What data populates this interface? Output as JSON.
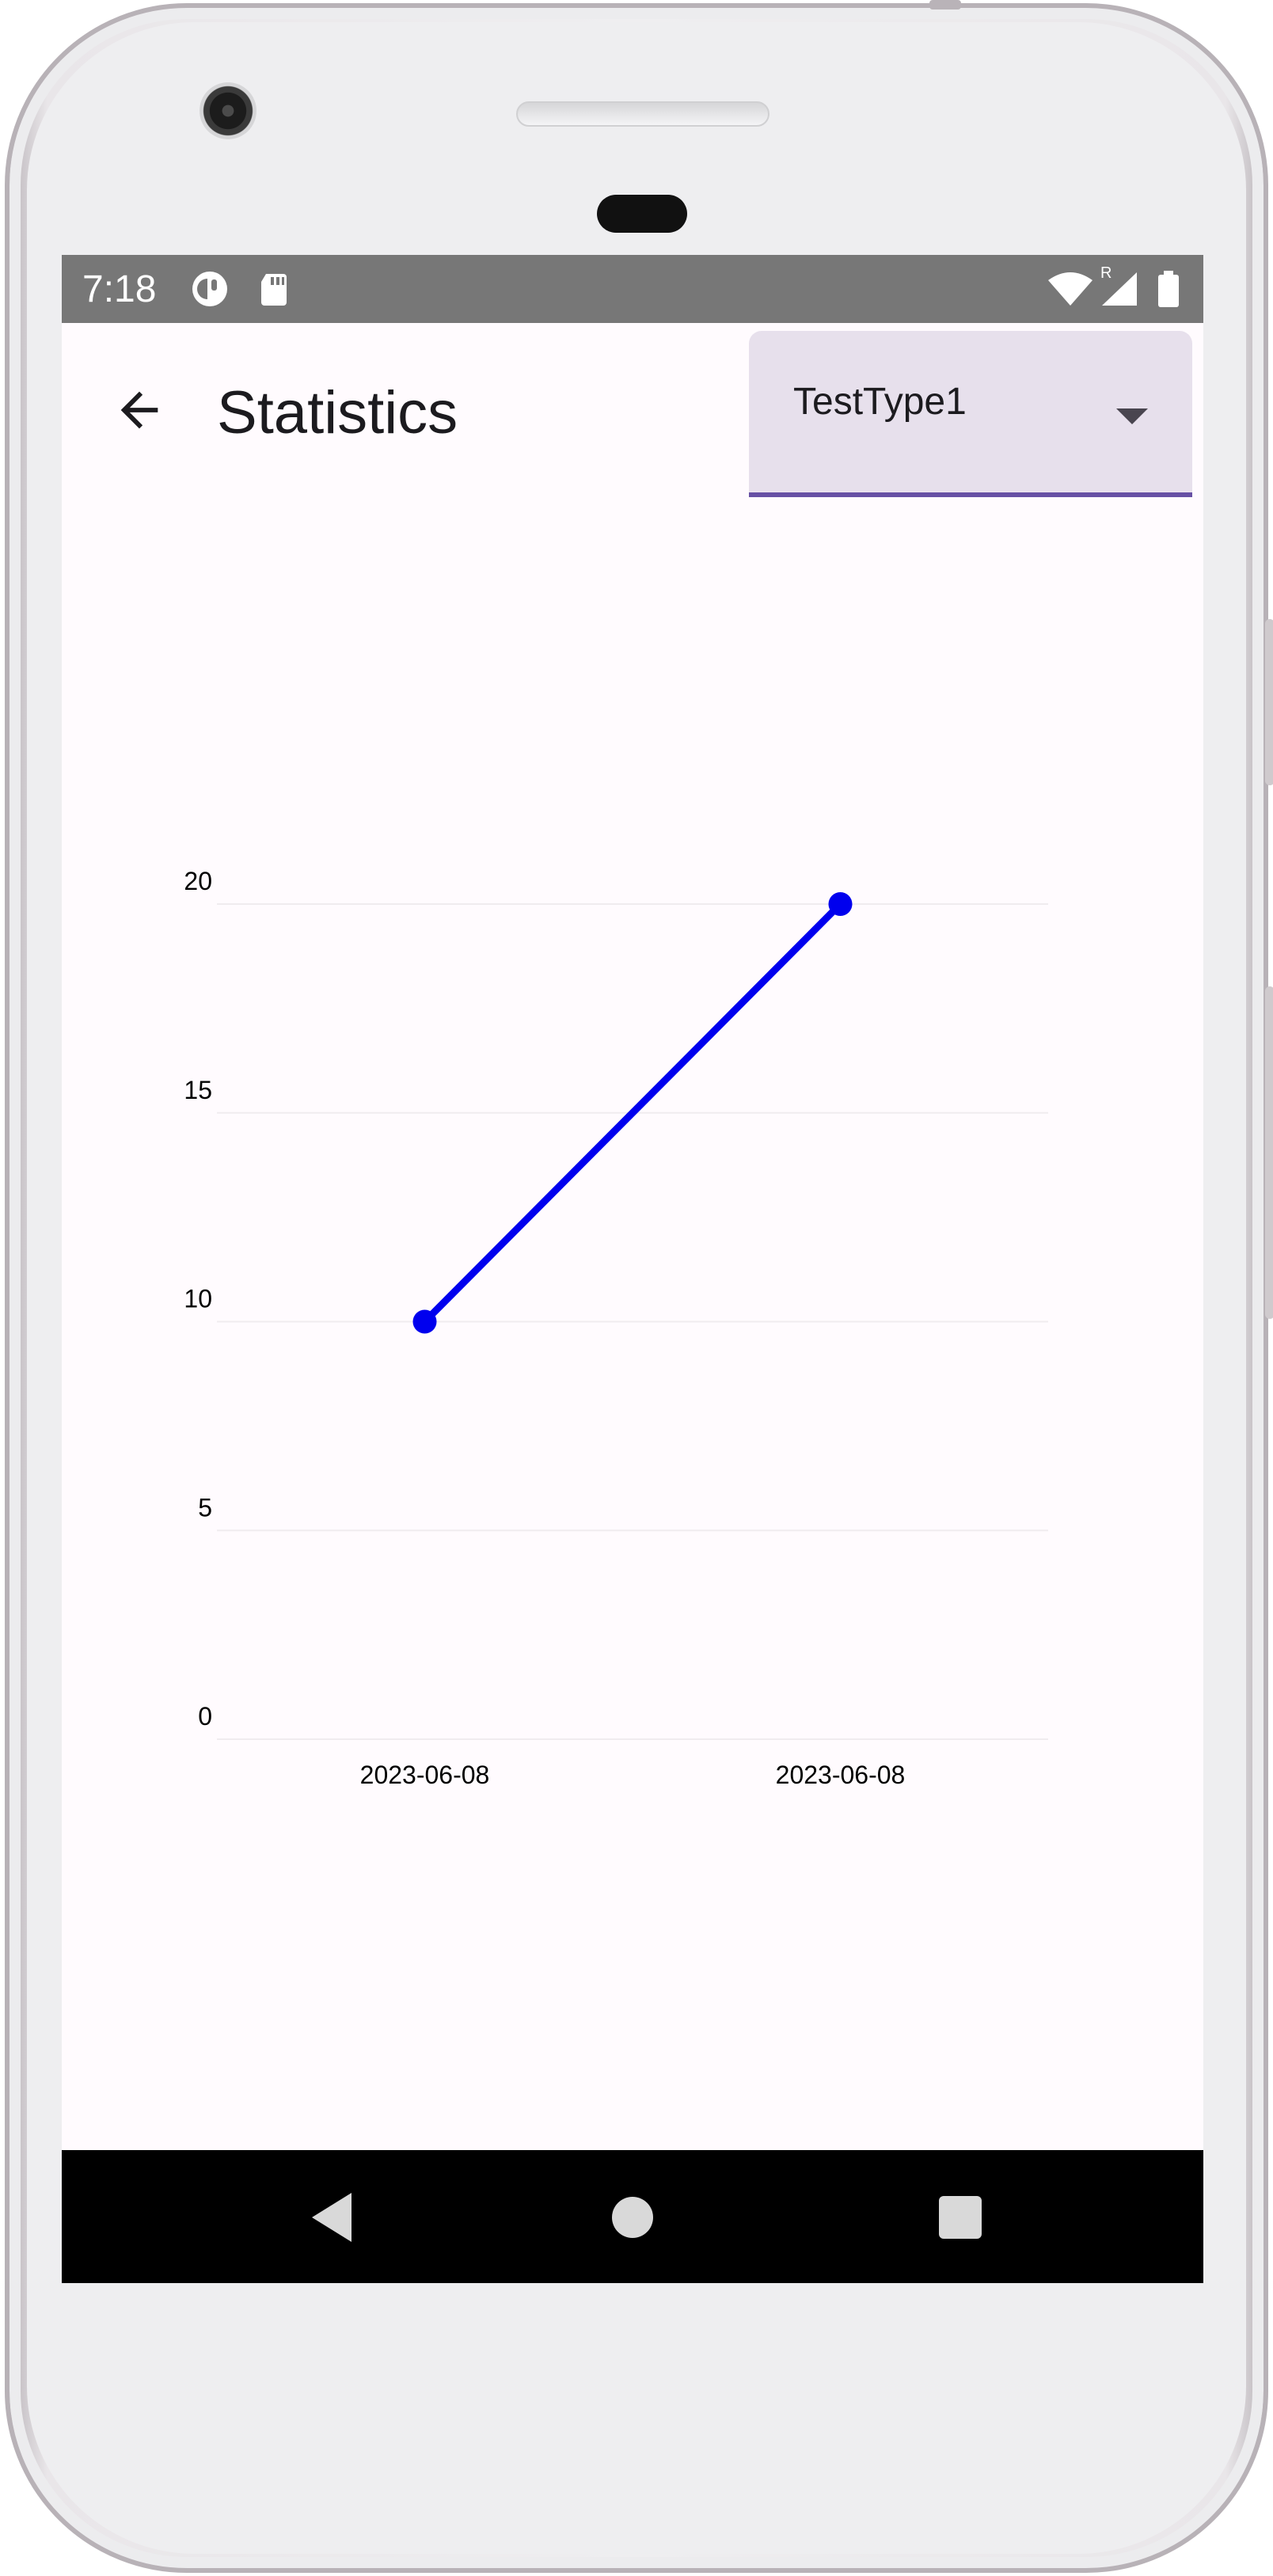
{
  "status_bar": {
    "time": "7:18",
    "icons": [
      "app-notification-icon",
      "sd-card-icon",
      "wifi-icon",
      "signal-icon",
      "battery-icon"
    ],
    "roaming_label": "R"
  },
  "app_bar": {
    "title": "Statistics",
    "back_icon": "arrow-back-icon",
    "dropdown": {
      "selected": "TestType1"
    }
  },
  "chart_data": {
    "type": "line",
    "x": [
      "2023-06-08",
      "2023-06-08"
    ],
    "series": [
      {
        "values": [
          10,
          20
        ],
        "color": "#0000ee"
      }
    ],
    "y_ticks": [
      "0",
      "5",
      "10",
      "15",
      "20"
    ],
    "ylim": [
      0,
      20
    ],
    "grid": true
  },
  "nav_bar": {
    "icons": [
      "back-triangle-icon",
      "home-circle-icon",
      "recents-square-icon"
    ]
  },
  "colors": {
    "accent": "#6750a4",
    "dropdown_bg": "#e7e0ec",
    "line": "#0000ee",
    "screen_bg": "#fffbfe"
  }
}
